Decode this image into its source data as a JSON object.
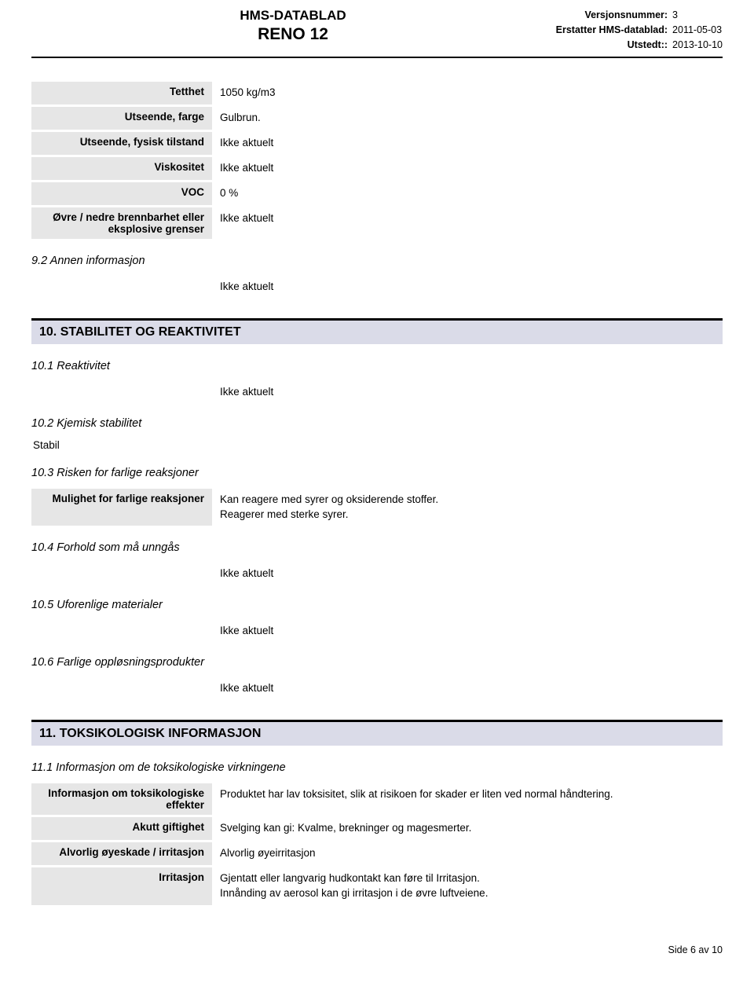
{
  "header": {
    "title1": "HMS-DATABLAD",
    "title2": "RENO 12",
    "meta": [
      {
        "label": "Versjonsnummer:",
        "value": "3"
      },
      {
        "label": "Erstatter HMS-datablad:",
        "value": "2011-05-03"
      },
      {
        "label": "Utstedt::",
        "value": "2013-10-10"
      }
    ]
  },
  "props": [
    {
      "label": "Tetthet",
      "value": "1050 kg/m3"
    },
    {
      "label": "Utseende, farge",
      "value": "Gulbrun."
    },
    {
      "label": "Utseende, fysisk tilstand",
      "value": "Ikke aktuelt"
    },
    {
      "label": "Viskositet",
      "value": "Ikke aktuelt"
    },
    {
      "label": "VOC",
      "value": "0 %"
    },
    {
      "label": "Øvre / nedre brennbarhet eller eksplosive grenser",
      "value": "Ikke aktuelt"
    }
  ],
  "sub92": {
    "heading": "9.2 Annen informasjon",
    "text": "Ikke aktuelt"
  },
  "section10": {
    "title": "10. STABILITET OG REAKTIVITET",
    "s101": {
      "heading": "10.1 Reaktivitet",
      "text": "Ikke aktuelt"
    },
    "s102": {
      "heading": "10.2 Kjemisk stabilitet",
      "text": "Stabil"
    },
    "s103": {
      "heading": "10.3 Risken for farlige reaksjoner",
      "row": {
        "label": "Mulighet for farlige reaksjoner",
        "value": "Kan reagere med syrer og oksiderende stoffer.\nReagerer med sterke syrer."
      }
    },
    "s104": {
      "heading": "10.4 Forhold som må unngås",
      "text": "Ikke aktuelt"
    },
    "s105": {
      "heading": "10.5 Uforenlige materialer",
      "text": "Ikke aktuelt"
    },
    "s106": {
      "heading": "10.6 Farlige oppløsningsprodukter",
      "text": "Ikke aktuelt"
    }
  },
  "section11": {
    "title": "11. TOKSIKOLOGISK INFORMASJON",
    "s111": {
      "heading": "11.1 Informasjon om de toksikologiske virkningene"
    },
    "rows": [
      {
        "label": "Informasjon om toksikologiske effekter",
        "value": "Produktet har lav toksisitet, slik at risikoen for skader er liten ved normal håndtering."
      },
      {
        "label": "Akutt giftighet",
        "value": "Svelging kan gi: Kvalme, brekninger og magesmerter."
      },
      {
        "label": "Alvorlig øyeskade / irritasjon",
        "value": "Alvorlig øyeirritasjon"
      },
      {
        "label": "Irritasjon",
        "value": "Gjentatt eller langvarig hudkontakt kan føre til Irritasjon.\nInnånding av aerosol kan gi irritasjon i de øvre luftveiene."
      }
    ]
  },
  "footer": "Side 6 av 10",
  "colors": {
    "section_bg": "#dadbe8",
    "row_label_bg": "#e6e6e6",
    "border": "#000000"
  }
}
